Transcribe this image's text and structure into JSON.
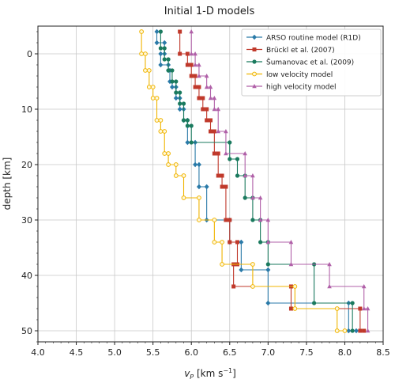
{
  "chart_data": {
    "type": "line",
    "title": "Initial 1-D models",
    "xlabel_main": "v",
    "xlabel_sub": "P",
    "xlabel_unit_pre": " [km s",
    "xlabel_unit_sup": "−1",
    "xlabel_unit_post": "]",
    "ylabel": "depth [km]",
    "xlim": [
      4.0,
      8.5
    ],
    "ylim": [
      -5,
      52
    ],
    "y_inverted": true,
    "grid": true,
    "legend_position": "top-right",
    "x_ticks": [
      "4.0",
      "4.5",
      "5.0",
      "5.5",
      "6.0",
      "6.5",
      "7.0",
      "7.5",
      "8.0",
      "8.5"
    ],
    "y_ticks": [
      "0",
      "10",
      "20",
      "30",
      "40",
      "50"
    ],
    "series": [
      {
        "name": "ARSO routine model (R1D)",
        "color": "#2a7aa8",
        "marker": "diamond",
        "points": [
          [
            5.55,
            -4
          ],
          [
            5.55,
            -2
          ],
          [
            5.65,
            -2
          ],
          [
            5.65,
            0
          ],
          [
            5.6,
            0
          ],
          [
            5.6,
            2
          ],
          [
            5.7,
            2
          ],
          [
            5.7,
            3
          ],
          [
            5.72,
            3
          ],
          [
            5.72,
            5
          ],
          [
            5.75,
            5
          ],
          [
            5.75,
            6
          ],
          [
            5.8,
            6
          ],
          [
            5.8,
            8
          ],
          [
            5.85,
            8
          ],
          [
            5.85,
            10
          ],
          [
            5.9,
            10
          ],
          [
            5.9,
            12
          ],
          [
            5.95,
            12
          ],
          [
            5.95,
            16
          ],
          [
            6.05,
            16
          ],
          [
            6.05,
            20
          ],
          [
            6.1,
            20
          ],
          [
            6.1,
            24
          ],
          [
            6.2,
            24
          ],
          [
            6.2,
            30
          ],
          [
            6.5,
            30
          ],
          [
            6.5,
            34
          ],
          [
            6.65,
            34
          ],
          [
            6.65,
            39
          ],
          [
            7.0,
            39
          ],
          [
            7.0,
            45
          ],
          [
            8.05,
            45
          ],
          [
            8.05,
            50
          ],
          [
            8.15,
            50
          ]
        ]
      },
      {
        "name": "Brückl et al. (2007)",
        "color": "#c0392b",
        "marker": "square",
        "points": [
          [
            5.85,
            -4
          ],
          [
            5.85,
            0
          ],
          [
            5.95,
            0
          ],
          [
            5.95,
            2
          ],
          [
            6.0,
            2
          ],
          [
            6.0,
            4
          ],
          [
            6.05,
            4
          ],
          [
            6.05,
            6
          ],
          [
            6.1,
            6
          ],
          [
            6.1,
            8
          ],
          [
            6.15,
            8
          ],
          [
            6.15,
            10
          ],
          [
            6.2,
            10
          ],
          [
            6.2,
            12
          ],
          [
            6.25,
            12
          ],
          [
            6.25,
            14
          ],
          [
            6.3,
            14
          ],
          [
            6.3,
            18
          ],
          [
            6.35,
            18
          ],
          [
            6.35,
            22
          ],
          [
            6.4,
            22
          ],
          [
            6.4,
            24
          ],
          [
            6.45,
            24
          ],
          [
            6.45,
            30
          ],
          [
            6.5,
            30
          ],
          [
            6.5,
            34
          ],
          [
            6.6,
            34
          ],
          [
            6.6,
            38
          ],
          [
            6.55,
            38
          ],
          [
            6.55,
            42
          ],
          [
            7.3,
            42
          ],
          [
            7.3,
            46
          ],
          [
            8.2,
            46
          ],
          [
            8.2,
            50
          ],
          [
            8.25,
            50
          ]
        ]
      },
      {
        "name": "Šumanovac et al. (2009)",
        "color": "#1a7a5e",
        "marker": "circle",
        "points": [
          [
            5.6,
            -4
          ],
          [
            5.6,
            -1
          ],
          [
            5.65,
            -1
          ],
          [
            5.65,
            1
          ],
          [
            5.7,
            1
          ],
          [
            5.7,
            3
          ],
          [
            5.75,
            3
          ],
          [
            5.75,
            5
          ],
          [
            5.8,
            5
          ],
          [
            5.8,
            7
          ],
          [
            5.85,
            7
          ],
          [
            5.85,
            9
          ],
          [
            5.9,
            9
          ],
          [
            5.9,
            12
          ],
          [
            5.95,
            12
          ],
          [
            5.95,
            13
          ],
          [
            6.0,
            13
          ],
          [
            6.0,
            16
          ],
          [
            6.5,
            16
          ],
          [
            6.5,
            19
          ],
          [
            6.6,
            19
          ],
          [
            6.6,
            22
          ],
          [
            6.7,
            22
          ],
          [
            6.7,
            26
          ],
          [
            6.8,
            26
          ],
          [
            6.8,
            30
          ],
          [
            6.9,
            30
          ],
          [
            6.9,
            34
          ],
          [
            7.0,
            34
          ],
          [
            7.0,
            38
          ],
          [
            7.6,
            38
          ],
          [
            7.6,
            45
          ],
          [
            8.1,
            45
          ],
          [
            8.1,
            50
          ]
        ]
      },
      {
        "name": "low velocity model",
        "color": "#f0b400",
        "marker": "circle-open",
        "points": [
          [
            5.35,
            -4
          ],
          [
            5.35,
            0
          ],
          [
            5.4,
            0
          ],
          [
            5.4,
            3
          ],
          [
            5.45,
            3
          ],
          [
            5.45,
            6
          ],
          [
            5.5,
            6
          ],
          [
            5.5,
            8
          ],
          [
            5.55,
            8
          ],
          [
            5.55,
            12
          ],
          [
            5.6,
            12
          ],
          [
            5.6,
            14
          ],
          [
            5.65,
            14
          ],
          [
            5.65,
            18
          ],
          [
            5.7,
            18
          ],
          [
            5.7,
            20
          ],
          [
            5.8,
            20
          ],
          [
            5.8,
            22
          ],
          [
            5.9,
            22
          ],
          [
            5.9,
            26
          ],
          [
            6.1,
            26
          ],
          [
            6.1,
            30
          ],
          [
            6.3,
            30
          ],
          [
            6.3,
            34
          ],
          [
            6.4,
            34
          ],
          [
            6.4,
            38
          ],
          [
            6.8,
            38
          ],
          [
            6.8,
            42
          ],
          [
            7.35,
            42
          ],
          [
            7.35,
            46
          ],
          [
            7.9,
            46
          ],
          [
            7.9,
            50
          ],
          [
            8.0,
            50
          ]
        ]
      },
      {
        "name": "high velocity model",
        "color": "#b060a8",
        "marker": "triangle",
        "points": [
          [
            6.0,
            -4
          ],
          [
            6.0,
            0
          ],
          [
            6.05,
            0
          ],
          [
            6.05,
            2
          ],
          [
            6.1,
            2
          ],
          [
            6.1,
            4
          ],
          [
            6.2,
            4
          ],
          [
            6.2,
            6
          ],
          [
            6.25,
            6
          ],
          [
            6.25,
            8
          ],
          [
            6.3,
            8
          ],
          [
            6.3,
            10
          ],
          [
            6.35,
            10
          ],
          [
            6.35,
            14
          ],
          [
            6.45,
            14
          ],
          [
            6.45,
            18
          ],
          [
            6.7,
            18
          ],
          [
            6.7,
            22
          ],
          [
            6.8,
            22
          ],
          [
            6.8,
            26
          ],
          [
            6.9,
            26
          ],
          [
            6.9,
            30
          ],
          [
            7.0,
            30
          ],
          [
            7.0,
            34
          ],
          [
            7.3,
            34
          ],
          [
            7.3,
            38
          ],
          [
            7.8,
            38
          ],
          [
            7.8,
            42
          ],
          [
            8.25,
            42
          ],
          [
            8.25,
            46
          ],
          [
            8.3,
            46
          ],
          [
            8.3,
            50
          ]
        ]
      }
    ]
  }
}
